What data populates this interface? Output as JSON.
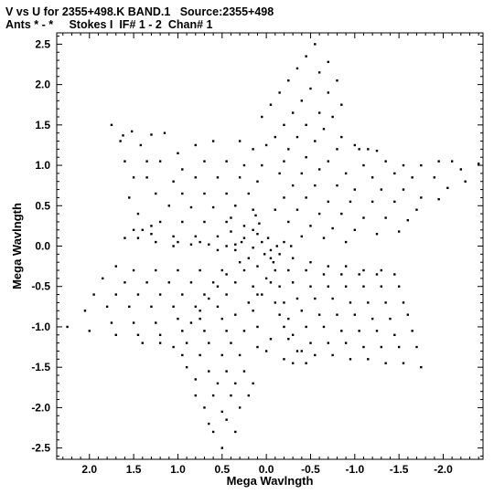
{
  "header": {
    "line1": "V vs U for 2355+498.K BAND.1   Source:2355+498",
    "line2": "Ants * - *     Stokes I  IF# 1 - 2  Chan# 1"
  },
  "chart_data": {
    "type": "scatter",
    "xlabel": "Mega Wavlngth",
    "ylabel": "Mega Wavlngth",
    "xlim": [
      2.37,
      -2.45
    ],
    "ylim": [
      -2.64,
      2.64
    ],
    "x_reversed": true,
    "xticks": [
      2.0,
      1.5,
      1.0,
      0.5,
      0.0,
      -0.5,
      -1.0,
      -1.5,
      -2.0
    ],
    "xtick_labels": [
      "2.0",
      "1.5",
      "1.0",
      "0.5",
      "0.0",
      "-0.5",
      "-1.0",
      "-1.5",
      "-2.0"
    ],
    "yticks": [
      2.5,
      2.0,
      1.5,
      1.0,
      0.5,
      0.0,
      -0.5,
      -1.0,
      -1.5,
      -2.0,
      -2.5
    ],
    "ytick_labels": [
      "2.5",
      "2.0",
      "1.5",
      "1.0",
      "0.5",
      "0.0",
      "-0.5",
      "-1.0",
      "-1.5",
      "-2.0",
      "-2.5"
    ],
    "grid": false,
    "marker_color": "#000000",
    "points": [
      [
        -0.55,
        2.5
      ],
      [
        -0.45,
        2.35
      ],
      [
        -0.7,
        2.28
      ],
      [
        -0.35,
        2.2
      ],
      [
        -0.6,
        2.15
      ],
      [
        -0.8,
        2.05
      ],
      [
        -0.25,
        2.05
      ],
      [
        -0.5,
        1.95
      ],
      [
        -0.7,
        1.9
      ],
      [
        -0.15,
        1.9
      ],
      [
        -0.4,
        1.8
      ],
      [
        -0.85,
        1.75
      ],
      [
        -0.05,
        1.75
      ],
      [
        -0.3,
        1.65
      ],
      [
        -0.6,
        1.65
      ],
      [
        0.05,
        1.6
      ],
      [
        -0.2,
        1.5
      ],
      [
        -0.45,
        1.5
      ],
      [
        -0.75,
        1.6
      ],
      [
        -0.1,
        1.35
      ],
      [
        -0.35,
        1.35
      ],
      [
        -0.65,
        1.45
      ],
      [
        -0.85,
        1.35
      ],
      [
        0.0,
        1.25
      ],
      [
        -0.25,
        1.2
      ],
      [
        -0.55,
        1.3
      ],
      [
        -0.8,
        1.2
      ],
      [
        -1.0,
        1.25
      ],
      [
        -1.05,
        1.2
      ],
      [
        -1.15,
        1.2
      ],
      [
        -1.25,
        1.18
      ],
      [
        -0.2,
        1.05
      ],
      [
        -0.45,
        1.1
      ],
      [
        -0.7,
        1.05
      ],
      [
        -1.1,
        1.0
      ],
      [
        -1.35,
        1.05
      ],
      [
        -1.55,
        1.0
      ],
      [
        -1.75,
        1.0
      ],
      [
        -1.95,
        1.05
      ],
      [
        -2.1,
        1.05
      ],
      [
        -2.2,
        0.95
      ],
      [
        -2.25,
        0.8
      ],
      [
        -2.4,
        1.02
      ],
      [
        -0.15,
        0.9
      ],
      [
        -0.4,
        0.9
      ],
      [
        -0.6,
        0.95
      ],
      [
        -0.9,
        0.9
      ],
      [
        -1.2,
        0.85
      ],
      [
        -1.45,
        0.9
      ],
      [
        -1.65,
        0.85
      ],
      [
        -1.9,
        0.85
      ],
      [
        -2.05,
        0.72
      ],
      [
        -0.3,
        0.75
      ],
      [
        -0.55,
        0.75
      ],
      [
        -0.8,
        0.75
      ],
      [
        -1.0,
        0.7
      ],
      [
        -1.3,
        0.7
      ],
      [
        -1.55,
        0.7
      ],
      [
        -1.75,
        0.6
      ],
      [
        -1.95,
        0.58
      ],
      [
        -0.2,
        0.6
      ],
      [
        -0.45,
        0.6
      ],
      [
        -0.7,
        0.55
      ],
      [
        -0.95,
        0.55
      ],
      [
        -1.2,
        0.55
      ],
      [
        -1.45,
        0.55
      ],
      [
        -1.7,
        0.45
      ],
      [
        -0.1,
        0.45
      ],
      [
        -0.35,
        0.45
      ],
      [
        -0.6,
        0.4
      ],
      [
        -0.85,
        0.4
      ],
      [
        -1.1,
        0.35
      ],
      [
        -1.35,
        0.35
      ],
      [
        -1.6,
        0.32
      ],
      [
        -0.25,
        0.3
      ],
      [
        -0.5,
        0.25
      ],
      [
        -0.75,
        0.22
      ],
      [
        -1.0,
        0.2
      ],
      [
        -1.25,
        0.15
      ],
      [
        -1.5,
        0.18
      ],
      [
        -0.4,
        0.12
      ],
      [
        -0.65,
        0.1
      ],
      [
        -0.9,
        0.05
      ],
      [
        0.1,
        0.15
      ],
      [
        0.25,
        0.25
      ],
      [
        0.4,
        0.35
      ],
      [
        0.25,
        0.1
      ],
      [
        0.4,
        0.18
      ],
      [
        0.05,
        0.05
      ],
      [
        0.15,
        0.2
      ],
      [
        1.0,
        1.15
      ],
      [
        0.8,
        1.25
      ],
      [
        0.6,
        1.3
      ],
      [
        0.3,
        1.3
      ],
      [
        0.15,
        1.2
      ],
      [
        1.2,
        1.05
      ],
      [
        0.95,
        0.95
      ],
      [
        0.7,
        1.05
      ],
      [
        0.45,
        1.05
      ],
      [
        0.25,
        1.0
      ],
      [
        0.05,
        1.0
      ],
      [
        1.35,
        0.85
      ],
      [
        1.05,
        0.8
      ],
      [
        0.8,
        0.85
      ],
      [
        0.55,
        0.85
      ],
      [
        0.3,
        0.85
      ],
      [
        0.1,
        0.8
      ],
      [
        1.25,
        0.65
      ],
      [
        0.95,
        0.65
      ],
      [
        0.7,
        0.65
      ],
      [
        0.45,
        0.65
      ],
      [
        0.2,
        0.65
      ],
      [
        1.1,
        0.5
      ],
      [
        0.85,
        0.48
      ],
      [
        0.6,
        0.48
      ],
      [
        0.35,
        0.5
      ],
      [
        0.15,
        0.45
      ],
      [
        1.2,
        0.3
      ],
      [
        0.95,
        0.3
      ],
      [
        0.7,
        0.3
      ],
      [
        0.45,
        0.3
      ],
      [
        1.3,
        0.15
      ],
      [
        1.05,
        0.12
      ],
      [
        0.8,
        0.12
      ],
      [
        0.55,
        0.12
      ],
      [
        1.5,
        0.2
      ],
      [
        1.75,
        1.5
      ],
      [
        1.62,
        1.37
      ],
      [
        1.52,
        1.42
      ],
      [
        1.3,
        1.38
      ],
      [
        1.15,
        1.4
      ],
      [
        1.65,
        1.3
      ],
      [
        1.42,
        1.25
      ],
      [
        1.6,
        1.05
      ],
      [
        1.35,
        1.05
      ],
      [
        1.5,
        0.85
      ],
      [
        1.55,
        0.6
      ],
      [
        1.45,
        0.4
      ],
      [
        1.4,
        0.2
      ],
      [
        1.0,
        0.05
      ],
      [
        0.75,
        0.05
      ],
      [
        1.6,
        0.1
      ],
      [
        1.3,
        0.25
      ],
      [
        0.55,
        -0.05
      ],
      [
        0.45,
        0.0
      ],
      [
        0.35,
        -0.05
      ],
      [
        0.15,
        -0.02
      ],
      [
        0.65,
        0.02
      ],
      [
        0.85,
        0.02
      ],
      [
        1.05,
        0.0
      ],
      [
        1.25,
        0.05
      ],
      [
        1.45,
        0.1
      ],
      [
        1.7,
        -0.25
      ],
      [
        1.5,
        -0.3
      ],
      [
        1.25,
        -0.3
      ],
      [
        1.0,
        -0.3
      ],
      [
        0.75,
        -0.3
      ],
      [
        0.5,
        -0.3
      ],
      [
        0.25,
        -0.3
      ],
      [
        1.85,
        -0.4
      ],
      [
        1.6,
        -0.45
      ],
      [
        1.35,
        -0.45
      ],
      [
        1.1,
        -0.45
      ],
      [
        0.85,
        -0.45
      ],
      [
        0.6,
        -0.45
      ],
      [
        0.35,
        -0.45
      ],
      [
        1.95,
        -0.6
      ],
      [
        1.7,
        -0.6
      ],
      [
        1.45,
        -0.6
      ],
      [
        1.2,
        -0.6
      ],
      [
        0.95,
        -0.6
      ],
      [
        0.7,
        -0.6
      ],
      [
        0.45,
        -0.6
      ],
      [
        2.05,
        -0.8
      ],
      [
        1.8,
        -0.75
      ],
      [
        1.55,
        -0.75
      ],
      [
        1.3,
        -0.75
      ],
      [
        1.05,
        -0.75
      ],
      [
        0.8,
        -0.75
      ],
      [
        0.55,
        -0.75
      ],
      [
        2.25,
        -1.0
      ],
      [
        2.0,
        -1.05
      ],
      [
        1.75,
        -0.95
      ],
      [
        1.5,
        -0.95
      ],
      [
        1.25,
        -0.95
      ],
      [
        1.0,
        -0.9
      ],
      [
        0.75,
        -0.9
      ],
      [
        0.5,
        -0.9
      ],
      [
        1.7,
        -1.1
      ],
      [
        1.45,
        -1.1
      ],
      [
        1.2,
        -1.1
      ],
      [
        0.95,
        -1.05
      ],
      [
        0.7,
        -1.05
      ],
      [
        0.45,
        -1.05
      ],
      [
        1.4,
        -1.2
      ],
      [
        1.2,
        -1.2
      ],
      [
        1.05,
        -1.25
      ],
      [
        0.9,
        -1.2
      ],
      [
        0.65,
        -1.2
      ],
      [
        0.4,
        -1.2
      ],
      [
        0.95,
        -1.35
      ],
      [
        0.75,
        -1.35
      ],
      [
        0.5,
        -1.35
      ],
      [
        0.3,
        -1.35
      ],
      [
        0.9,
        -1.5
      ],
      [
        0.65,
        -1.55
      ],
      [
        0.45,
        -1.55
      ],
      [
        0.25,
        -1.55
      ],
      [
        0.8,
        -1.65
      ],
      [
        0.55,
        -1.7
      ],
      [
        0.35,
        -1.7
      ],
      [
        0.15,
        -1.7
      ],
      [
        0.8,
        -1.85
      ],
      [
        0.6,
        -1.85
      ],
      [
        0.4,
        -1.85
      ],
      [
        0.2,
        -1.85
      ],
      [
        0.7,
        -2.0
      ],
      [
        0.5,
        -2.05
      ],
      [
        0.3,
        -2.0
      ],
      [
        0.65,
        -2.2
      ],
      [
        0.45,
        -2.15
      ],
      [
        0.6,
        -2.3
      ],
      [
        0.5,
        -2.5
      ],
      [
        0.35,
        -2.3
      ],
      [
        0.1,
        -0.25
      ],
      [
        0.2,
        -0.15
      ],
      [
        0.3,
        -0.2
      ],
      [
        0.45,
        -0.35
      ],
      [
        0.55,
        -0.5
      ],
      [
        0.65,
        -0.65
      ],
      [
        0.75,
        -0.8
      ],
      [
        0.85,
        -0.95
      ],
      [
        -0.1,
        -0.3
      ],
      [
        -0.15,
        -0.5
      ],
      [
        -0.2,
        -0.7
      ],
      [
        -0.25,
        -0.9
      ],
      [
        -0.3,
        -1.1
      ],
      [
        -0.35,
        -1.3
      ],
      [
        -0.05,
        -0.15
      ],
      [
        -0.25,
        -0.3
      ],
      [
        -0.45,
        -0.3
      ],
      [
        -0.65,
        -0.35
      ],
      [
        -0.85,
        -0.35
      ],
      [
        -1.05,
        -0.35
      ],
      [
        -1.25,
        -0.35
      ],
      [
        -1.45,
        -0.35
      ],
      [
        -0.3,
        -0.45
      ],
      [
        -0.5,
        -0.5
      ],
      [
        -0.7,
        -0.5
      ],
      [
        -0.9,
        -0.5
      ],
      [
        -1.1,
        -0.5
      ],
      [
        -1.3,
        -0.5
      ],
      [
        -1.5,
        -0.5
      ],
      [
        -0.35,
        -0.65
      ],
      [
        -0.55,
        -0.65
      ],
      [
        -0.75,
        -0.65
      ],
      [
        -0.95,
        -0.7
      ],
      [
        -1.15,
        -0.7
      ],
      [
        -1.35,
        -0.7
      ],
      [
        -1.55,
        -0.7
      ],
      [
        -0.4,
        -0.8
      ],
      [
        -0.6,
        -0.85
      ],
      [
        -0.8,
        -0.85
      ],
      [
        -1.0,
        -0.85
      ],
      [
        -1.2,
        -0.9
      ],
      [
        -1.4,
        -0.9
      ],
      [
        -1.6,
        -0.85
      ],
      [
        -0.45,
        -1.0
      ],
      [
        -0.65,
        -1.0
      ],
      [
        -0.85,
        -1.05
      ],
      [
        -1.05,
        -1.05
      ],
      [
        -1.25,
        -1.05
      ],
      [
        -1.45,
        -1.1
      ],
      [
        -1.65,
        -1.05
      ],
      [
        -0.5,
        -1.2
      ],
      [
        -0.7,
        -1.2
      ],
      [
        -0.9,
        -1.2
      ],
      [
        -1.1,
        -1.25
      ],
      [
        -1.3,
        -1.25
      ],
      [
        -1.5,
        -1.25
      ],
      [
        -1.7,
        -1.25
      ],
      [
        -0.55,
        -1.35
      ],
      [
        -0.75,
        -1.35
      ],
      [
        -0.95,
        -1.4
      ],
      [
        -1.15,
        -1.4
      ],
      [
        -1.35,
        -1.45
      ],
      [
        -1.55,
        -1.45
      ],
      [
        -1.75,
        -1.5
      ],
      [
        -0.4,
        -1.3
      ],
      [
        -0.25,
        -1.15
      ],
      [
        -0.2,
        -1.4
      ],
      [
        -0.3,
        -1.45
      ],
      [
        -0.45,
        -1.45
      ],
      [
        -0.05,
        -1.15
      ],
      [
        0.0,
        -1.3
      ],
      [
        0.1,
        -1.0
      ],
      [
        0.15,
        -0.8
      ],
      [
        0.05,
        -0.6
      ],
      [
        -0.05,
        -0.45
      ],
      [
        0.0,
        -0.4
      ],
      [
        0.15,
        -0.5
      ],
      [
        0.2,
        -0.7
      ],
      [
        0.1,
        -0.6
      ],
      [
        0.35,
        -0.85
      ],
      [
        0.25,
        -1.05
      ],
      [
        0.1,
        -1.25
      ],
      [
        -0.15,
        -0.85
      ],
      [
        -0.2,
        -1.0
      ],
      [
        -0.1,
        -0.7
      ],
      [
        -0.05,
        -0.05
      ],
      [
        -0.15,
        -0.1
      ],
      [
        -0.3,
        -0.15
      ],
      [
        -0.5,
        -0.2
      ],
      [
        -0.7,
        -0.25
      ],
      [
        -0.9,
        -0.25
      ],
      [
        -1.1,
        -0.3
      ],
      [
        -1.3,
        -0.3
      ],
      [
        0.12,
        0.38
      ],
      [
        0.08,
        0.28
      ],
      [
        -0.02,
        0.1
      ],
      [
        0.02,
        -0.1
      ],
      [
        -0.08,
        -0.2
      ],
      [
        -0.12,
        0.0
      ],
      [
        0.35,
        0.02
      ],
      [
        0.28,
        0.05
      ],
      [
        -0.2,
        0.05
      ],
      [
        -0.28,
        0.0
      ]
    ]
  }
}
